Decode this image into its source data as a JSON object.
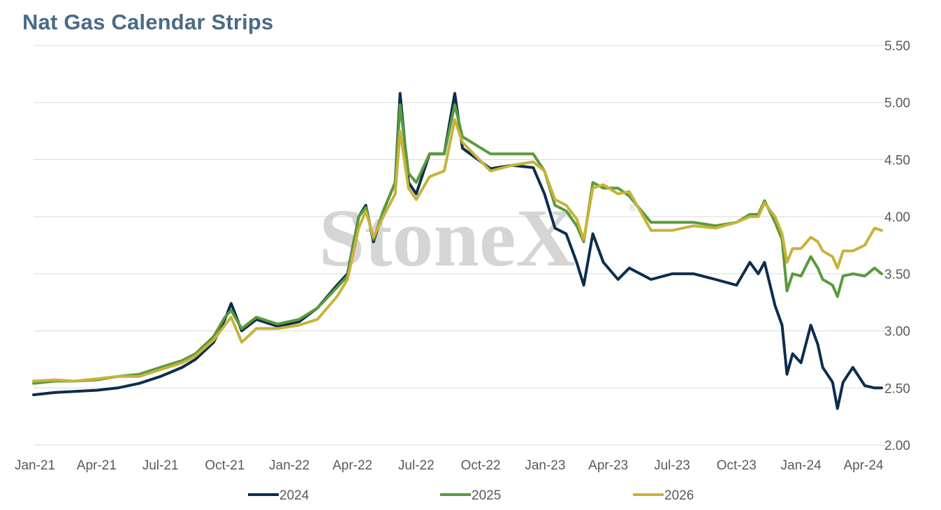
{
  "title": "Nat Gas Calendar Strips",
  "watermark": "StoneX",
  "chart_data": {
    "type": "line",
    "title": "Nat Gas Calendar Strips",
    "xlabel": "",
    "ylabel": "",
    "x_tick_labels": [
      "Jan-21",
      "Apr-21",
      "Jul-21",
      "Oct-21",
      "Jan-22",
      "Apr-22",
      "Jul-22",
      "Oct-22",
      "Jan-23",
      "Apr-23",
      "Jul-23",
      "Oct-23",
      "Jan-24",
      "Apr-24"
    ],
    "y_tick_labels": [
      "2.00",
      "2.50",
      "3.00",
      "3.50",
      "4.00",
      "4.50",
      "5.00",
      "5.50"
    ],
    "ylim": [
      2.0,
      5.5
    ],
    "xlim": [
      "2021-01-01",
      "2024-05-01"
    ],
    "y_axis_position": "right",
    "grid": true,
    "legend_position": "bottom",
    "series": [
      {
        "name": "2024",
        "color": "#0e2d4e",
        "points": [
          [
            "2021-01-01",
            2.44
          ],
          [
            "2021-02-01",
            2.46
          ],
          [
            "2021-03-01",
            2.47
          ],
          [
            "2021-04-01",
            2.48
          ],
          [
            "2021-05-01",
            2.5
          ],
          [
            "2021-06-01",
            2.54
          ],
          [
            "2021-07-01",
            2.6
          ],
          [
            "2021-08-01",
            2.68
          ],
          [
            "2021-08-20",
            2.75
          ],
          [
            "2021-09-15",
            2.9
          ],
          [
            "2021-10-01",
            3.1
          ],
          [
            "2021-10-10",
            3.24
          ],
          [
            "2021-10-25",
            3.0
          ],
          [
            "2021-11-15",
            3.1
          ],
          [
            "2021-12-15",
            3.04
          ],
          [
            "2022-01-15",
            3.08
          ],
          [
            "2022-02-10",
            3.2
          ],
          [
            "2022-03-10",
            3.4
          ],
          [
            "2022-03-25",
            3.5
          ],
          [
            "2022-04-10",
            4.0
          ],
          [
            "2022-04-20",
            4.1
          ],
          [
            "2022-05-01",
            3.78
          ],
          [
            "2022-05-15",
            4.05
          ],
          [
            "2022-06-01",
            4.3
          ],
          [
            "2022-06-08",
            5.08
          ],
          [
            "2022-06-20",
            4.3
          ],
          [
            "2022-07-01",
            4.2
          ],
          [
            "2022-07-20",
            4.55
          ],
          [
            "2022-08-10",
            4.55
          ],
          [
            "2022-08-25",
            5.08
          ],
          [
            "2022-09-05",
            4.6
          ],
          [
            "2022-10-15",
            4.42
          ],
          [
            "2022-11-15",
            4.45
          ],
          [
            "2022-12-15",
            4.43
          ],
          [
            "2022-12-31",
            4.2
          ],
          [
            "2023-01-15",
            3.9
          ],
          [
            "2023-01-31",
            3.85
          ],
          [
            "2023-02-15",
            3.6
          ],
          [
            "2023-02-25",
            3.4
          ],
          [
            "2023-03-10",
            3.85
          ],
          [
            "2023-03-25",
            3.6
          ],
          [
            "2023-04-15",
            3.45
          ],
          [
            "2023-05-01",
            3.55
          ],
          [
            "2023-06-01",
            3.45
          ],
          [
            "2023-07-01",
            3.5
          ],
          [
            "2023-08-01",
            3.5
          ],
          [
            "2023-09-01",
            3.45
          ],
          [
            "2023-10-01",
            3.4
          ],
          [
            "2023-10-20",
            3.6
          ],
          [
            "2023-11-01",
            3.5
          ],
          [
            "2023-11-10",
            3.6
          ],
          [
            "2023-11-25",
            3.22
          ],
          [
            "2023-12-05",
            3.05
          ],
          [
            "2023-12-12",
            2.62
          ],
          [
            "2023-12-20",
            2.8
          ],
          [
            "2024-01-01",
            2.72
          ],
          [
            "2024-01-15",
            3.05
          ],
          [
            "2024-01-25",
            2.88
          ],
          [
            "2024-02-01",
            2.68
          ],
          [
            "2024-02-15",
            2.55
          ],
          [
            "2024-02-22",
            2.32
          ],
          [
            "2024-03-01",
            2.55
          ],
          [
            "2024-03-15",
            2.68
          ],
          [
            "2024-04-01",
            2.52
          ],
          [
            "2024-04-15",
            2.5
          ],
          [
            "2024-04-25",
            2.5
          ]
        ]
      },
      {
        "name": "2025",
        "color": "#5a9a3c",
        "points": [
          [
            "2021-01-01",
            2.54
          ],
          [
            "2021-02-01",
            2.56
          ],
          [
            "2021-03-01",
            2.56
          ],
          [
            "2021-04-01",
            2.57
          ],
          [
            "2021-05-01",
            2.6
          ],
          [
            "2021-06-01",
            2.62
          ],
          [
            "2021-07-01",
            2.68
          ],
          [
            "2021-08-01",
            2.74
          ],
          [
            "2021-08-20",
            2.8
          ],
          [
            "2021-09-15",
            2.95
          ],
          [
            "2021-10-01",
            3.12
          ],
          [
            "2021-10-10",
            3.18
          ],
          [
            "2021-10-25",
            3.02
          ],
          [
            "2021-11-15",
            3.12
          ],
          [
            "2021-12-15",
            3.06
          ],
          [
            "2022-01-15",
            3.1
          ],
          [
            "2022-02-10",
            3.2
          ],
          [
            "2022-03-10",
            3.38
          ],
          [
            "2022-03-25",
            3.48
          ],
          [
            "2022-04-10",
            4.0
          ],
          [
            "2022-04-20",
            4.08
          ],
          [
            "2022-05-01",
            3.8
          ],
          [
            "2022-05-15",
            4.05
          ],
          [
            "2022-06-01",
            4.3
          ],
          [
            "2022-06-08",
            4.98
          ],
          [
            "2022-06-20",
            4.38
          ],
          [
            "2022-07-01",
            4.3
          ],
          [
            "2022-07-20",
            4.55
          ],
          [
            "2022-08-10",
            4.55
          ],
          [
            "2022-08-25",
            4.98
          ],
          [
            "2022-09-05",
            4.7
          ],
          [
            "2022-10-15",
            4.55
          ],
          [
            "2022-11-15",
            4.55
          ],
          [
            "2022-12-15",
            4.55
          ],
          [
            "2022-12-31",
            4.4
          ],
          [
            "2023-01-15",
            4.1
          ],
          [
            "2023-01-31",
            4.05
          ],
          [
            "2023-02-15",
            3.92
          ],
          [
            "2023-02-25",
            3.78
          ],
          [
            "2023-03-10",
            4.3
          ],
          [
            "2023-03-25",
            4.25
          ],
          [
            "2023-04-15",
            4.25
          ],
          [
            "2023-05-01",
            4.18
          ],
          [
            "2023-06-01",
            3.95
          ],
          [
            "2023-07-01",
            3.95
          ],
          [
            "2023-08-01",
            3.95
          ],
          [
            "2023-09-01",
            3.92
          ],
          [
            "2023-10-01",
            3.95
          ],
          [
            "2023-10-20",
            4.02
          ],
          [
            "2023-11-01",
            4.02
          ],
          [
            "2023-11-10",
            4.14
          ],
          [
            "2023-11-25",
            3.95
          ],
          [
            "2023-12-05",
            3.8
          ],
          [
            "2023-12-12",
            3.35
          ],
          [
            "2023-12-20",
            3.5
          ],
          [
            "2024-01-01",
            3.48
          ],
          [
            "2024-01-15",
            3.65
          ],
          [
            "2024-01-25",
            3.55
          ],
          [
            "2024-02-01",
            3.45
          ],
          [
            "2024-02-15",
            3.4
          ],
          [
            "2024-02-22",
            3.3
          ],
          [
            "2024-03-01",
            3.48
          ],
          [
            "2024-03-15",
            3.5
          ],
          [
            "2024-04-01",
            3.48
          ],
          [
            "2024-04-15",
            3.55
          ],
          [
            "2024-04-25",
            3.5
          ]
        ]
      },
      {
        "name": "2026",
        "color": "#c9b23a",
        "points": [
          [
            "2021-01-01",
            2.56
          ],
          [
            "2021-02-01",
            2.57
          ],
          [
            "2021-03-01",
            2.56
          ],
          [
            "2021-04-01",
            2.58
          ],
          [
            "2021-05-01",
            2.6
          ],
          [
            "2021-06-01",
            2.6
          ],
          [
            "2021-07-01",
            2.66
          ],
          [
            "2021-08-01",
            2.72
          ],
          [
            "2021-08-20",
            2.78
          ],
          [
            "2021-09-15",
            2.92
          ],
          [
            "2021-10-01",
            3.05
          ],
          [
            "2021-10-10",
            3.12
          ],
          [
            "2021-10-25",
            2.9
          ],
          [
            "2021-11-15",
            3.02
          ],
          [
            "2021-12-15",
            3.02
          ],
          [
            "2022-01-15",
            3.05
          ],
          [
            "2022-02-10",
            3.1
          ],
          [
            "2022-03-10",
            3.3
          ],
          [
            "2022-03-25",
            3.45
          ],
          [
            "2022-04-10",
            3.9
          ],
          [
            "2022-04-20",
            4.05
          ],
          [
            "2022-05-01",
            3.82
          ],
          [
            "2022-05-15",
            4.0
          ],
          [
            "2022-06-01",
            4.2
          ],
          [
            "2022-06-08",
            4.75
          ],
          [
            "2022-06-20",
            4.25
          ],
          [
            "2022-07-01",
            4.15
          ],
          [
            "2022-07-20",
            4.35
          ],
          [
            "2022-08-10",
            4.4
          ],
          [
            "2022-08-25",
            4.85
          ],
          [
            "2022-09-05",
            4.65
          ],
          [
            "2022-10-15",
            4.4
          ],
          [
            "2022-11-15",
            4.45
          ],
          [
            "2022-12-15",
            4.48
          ],
          [
            "2022-12-31",
            4.4
          ],
          [
            "2023-01-15",
            4.15
          ],
          [
            "2023-01-31",
            4.1
          ],
          [
            "2023-02-15",
            3.98
          ],
          [
            "2023-02-25",
            3.8
          ],
          [
            "2023-03-10",
            4.25
          ],
          [
            "2023-03-25",
            4.28
          ],
          [
            "2023-04-15",
            4.2
          ],
          [
            "2023-05-01",
            4.22
          ],
          [
            "2023-06-01",
            3.88
          ],
          [
            "2023-07-01",
            3.88
          ],
          [
            "2023-08-01",
            3.92
          ],
          [
            "2023-09-01",
            3.9
          ],
          [
            "2023-10-01",
            3.95
          ],
          [
            "2023-10-20",
            4.0
          ],
          [
            "2023-11-01",
            4.0
          ],
          [
            "2023-11-10",
            4.12
          ],
          [
            "2023-11-25",
            4.0
          ],
          [
            "2023-12-05",
            3.85
          ],
          [
            "2023-12-12",
            3.6
          ],
          [
            "2023-12-20",
            3.72
          ],
          [
            "2024-01-01",
            3.72
          ],
          [
            "2024-01-15",
            3.82
          ],
          [
            "2024-01-25",
            3.78
          ],
          [
            "2024-02-01",
            3.7
          ],
          [
            "2024-02-15",
            3.65
          ],
          [
            "2024-02-22",
            3.55
          ],
          [
            "2024-03-01",
            3.7
          ],
          [
            "2024-03-15",
            3.7
          ],
          [
            "2024-04-01",
            3.75
          ],
          [
            "2024-04-15",
            3.9
          ],
          [
            "2024-04-25",
            3.88
          ]
        ]
      }
    ]
  }
}
